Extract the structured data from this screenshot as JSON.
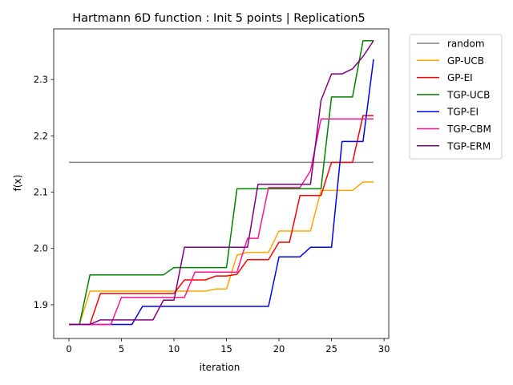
{
  "chart_data": {
    "type": "line",
    "title": "Hartmann 6D function : Init 5 points | Replication5",
    "xlabel": "iteration",
    "ylabel": "f(x)",
    "xlim": [
      -1.45,
      30.45
    ],
    "ylim": [
      1.84,
      2.39
    ],
    "xticks": [
      0,
      5,
      10,
      15,
      20,
      25,
      30
    ],
    "yticks": [
      1.9,
      2.0,
      2.1,
      2.2,
      2.3
    ],
    "xtick_labels": [
      "0",
      "5",
      "10",
      "15",
      "20",
      "25",
      "30"
    ],
    "ytick_labels": [
      "1.9",
      "2.0",
      "2.1",
      "2.2",
      "2.3"
    ],
    "grid": false,
    "legend_position": "outside-right-top",
    "x": [
      0,
      1,
      2,
      3,
      4,
      5,
      6,
      7,
      8,
      9,
      10,
      11,
      12,
      13,
      14,
      15,
      16,
      17,
      18,
      19,
      20,
      21,
      22,
      23,
      24,
      25,
      26,
      27,
      28,
      29
    ],
    "series": [
      {
        "name": "random",
        "color": "#808080",
        "values": [
          2.153,
          2.153,
          2.153,
          2.153,
          2.153,
          2.153,
          2.153,
          2.153,
          2.153,
          2.153,
          2.153,
          2.153,
          2.153,
          2.153,
          2.153,
          2.153,
          2.153,
          2.153,
          2.153,
          2.153,
          2.153,
          2.153,
          2.153,
          2.153,
          2.153,
          2.153,
          2.153,
          2.153,
          2.153,
          2.153
        ]
      },
      {
        "name": "GP-UCB",
        "color": "#ffa500",
        "values": [
          1.865,
          1.865,
          1.924,
          1.924,
          1.924,
          1.924,
          1.924,
          1.924,
          1.924,
          1.924,
          1.924,
          1.924,
          1.924,
          1.924,
          1.928,
          1.928,
          1.988,
          1.993,
          1.993,
          1.993,
          2.031,
          2.031,
          2.031,
          2.031,
          2.103,
          2.103,
          2.103,
          2.103,
          2.118,
          2.118
        ]
      },
      {
        "name": "GP-EI",
        "color": "#ff0000",
        "values": [
          1.865,
          1.865,
          1.865,
          1.92,
          1.92,
          1.92,
          1.92,
          1.92,
          1.92,
          1.92,
          1.92,
          1.944,
          1.944,
          1.944,
          1.951,
          1.951,
          1.954,
          1.98,
          1.98,
          1.98,
          2.011,
          2.011,
          2.094,
          2.094,
          2.094,
          2.153,
          2.153,
          2.153,
          2.236,
          2.236
        ]
      },
      {
        "name": "TGP-UCB",
        "color": "#008000",
        "values": [
          1.865,
          1.865,
          1.953,
          1.953,
          1.953,
          1.953,
          1.953,
          1.953,
          1.953,
          1.953,
          1.966,
          1.966,
          1.966,
          1.966,
          1.966,
          1.966,
          2.106,
          2.106,
          2.106,
          2.106,
          2.106,
          2.106,
          2.106,
          2.106,
          2.106,
          2.269,
          2.269,
          2.269,
          2.369,
          2.369
        ]
      },
      {
        "name": "TGP-EI",
        "color": "#0000ff",
        "values": [
          1.865,
          1.865,
          1.865,
          1.865,
          1.865,
          1.865,
          1.865,
          1.897,
          1.897,
          1.897,
          1.897,
          1.897,
          1.897,
          1.897,
          1.897,
          1.897,
          1.897,
          1.897,
          1.897,
          1.897,
          1.985,
          1.985,
          1.985,
          2.002,
          2.002,
          2.002,
          2.19,
          2.19,
          2.19,
          2.336
        ]
      },
      {
        "name": "TGP-CBM",
        "color": "#ff1493",
        "values": [
          1.865,
          1.865,
          1.865,
          1.865,
          1.865,
          1.913,
          1.913,
          1.913,
          1.913,
          1.913,
          1.913,
          1.913,
          1.958,
          1.958,
          1.958,
          1.958,
          1.958,
          2.018,
          2.018,
          2.108,
          2.108,
          2.108,
          2.108,
          2.138,
          2.23,
          2.23,
          2.23,
          2.23,
          2.23,
          2.23
        ]
      },
      {
        "name": "TGP-ERM",
        "color": "#800080",
        "values": [
          1.865,
          1.865,
          1.865,
          1.873,
          1.873,
          1.873,
          1.873,
          1.873,
          1.873,
          1.908,
          1.908,
          2.002,
          2.002,
          2.002,
          2.002,
          2.002,
          2.002,
          2.002,
          2.114,
          2.114,
          2.114,
          2.114,
          2.114,
          2.114,
          2.263,
          2.31,
          2.31,
          2.319,
          2.341,
          2.369
        ]
      }
    ]
  }
}
